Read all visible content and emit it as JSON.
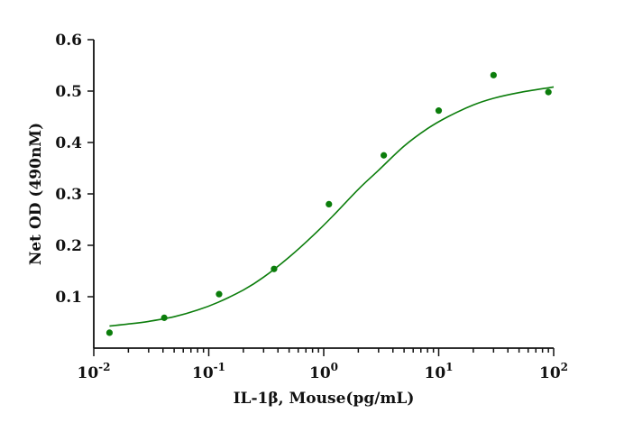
{
  "chart_data": {
    "type": "scatter",
    "title": "",
    "xlabel": "IL-1β, Mouse(pg/mL)",
    "ylabel": "Net OD (490nM)",
    "x_scale": "log",
    "xlim": [
      0.01,
      100
    ],
    "ylim": [
      0.0,
      0.6
    ],
    "x_ticks": [
      {
        "base": "10",
        "exp": "-2"
      },
      {
        "base": "10",
        "exp": "-1"
      },
      {
        "base": "10",
        "exp": "0"
      },
      {
        "base": "10",
        "exp": "1"
      },
      {
        "base": "10",
        "exp": "2"
      }
    ],
    "y_ticks": [
      "0.1",
      "0.2",
      "0.3",
      "0.4",
      "0.5",
      "0.6"
    ],
    "grid": false,
    "legend": "none",
    "colors": {
      "series": "#0b7d0b",
      "axis": "#111111"
    },
    "series": [
      {
        "type": "scatter",
        "x": [
          0.0137,
          0.041,
          0.123,
          0.37,
          1.11,
          3.33,
          10,
          30,
          90
        ],
        "y": [
          0.03,
          0.059,
          0.105,
          0.154,
          0.28,
          0.375,
          0.462,
          0.531,
          0.498
        ]
      },
      {
        "type": "line",
        "fit": "4PL",
        "x": [
          0.0137,
          0.02,
          0.03,
          0.05,
          0.08,
          0.12,
          0.2,
          0.3,
          0.5,
          0.8,
          1.2,
          2,
          3,
          5,
          8,
          12,
          20,
          30,
          50,
          100
        ],
        "y": [
          0.043,
          0.047,
          0.052,
          0.061,
          0.074,
          0.089,
          0.113,
          0.138,
          0.177,
          0.218,
          0.257,
          0.309,
          0.346,
          0.393,
          0.427,
          0.45,
          0.473,
          0.486,
          0.497,
          0.508
        ]
      }
    ]
  }
}
